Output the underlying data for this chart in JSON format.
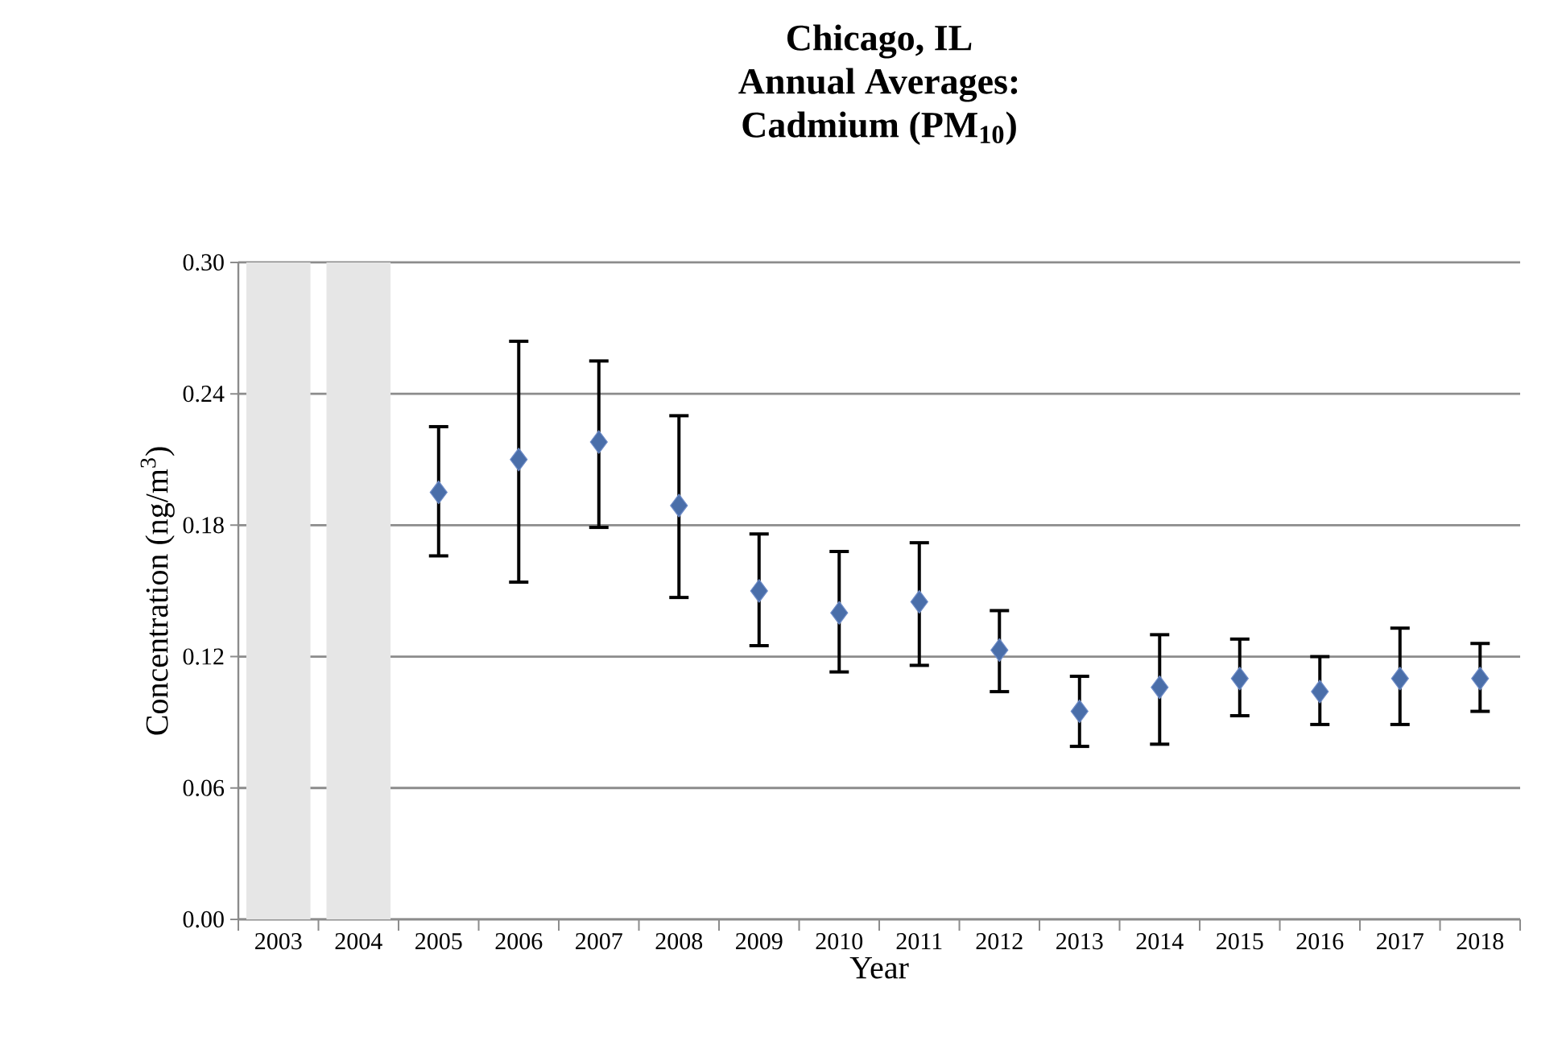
{
  "chart_data": {
    "type": "scatter",
    "title": "Chicago, IL\nAnnual Averages:\nCadmium (PM$_{10}$)",
    "xlabel": "Year",
    "ylabel": "Concentration (ng/m$^{3}$)",
    "categories": [
      "2003",
      "2004",
      "2005",
      "2006",
      "2007",
      "2008",
      "2009",
      "2010",
      "2011",
      "2012",
      "2013",
      "2014",
      "2015",
      "2016",
      "2017",
      "2018"
    ],
    "series": [
      {
        "color": "#4a6ea9",
        "values": [
          null,
          null,
          0.195,
          0.21,
          0.218,
          0.189,
          0.15,
          0.14,
          0.145,
          0.123,
          0.095,
          0.106,
          0.11,
          0.104,
          0.11,
          0.11
        ],
        "errors": [
          null,
          null,
          [
            0.166,
            0.225
          ],
          [
            0.154,
            0.264
          ],
          [
            0.179,
            0.255
          ],
          [
            0.147,
            0.23
          ],
          [
            0.125,
            0.176
          ],
          [
            0.113,
            0.168
          ],
          [
            0.116,
            0.172
          ],
          [
            0.104,
            0.141
          ],
          [
            0.079,
            0.111
          ],
          [
            0.08,
            0.13
          ],
          [
            0.093,
            0.128
          ],
          [
            0.089,
            0.12
          ],
          [
            0.089,
            0.133
          ],
          [
            0.095,
            0.126
          ]
        ]
      }
    ],
    "marker": "diamond",
    "grid": "y",
    "ylim": [
      0,
      0.3
    ],
    "yticks": [
      {
        "value": 0,
        "label": "0.00"
      },
      {
        "value": 0.06,
        "label": "0.06"
      },
      {
        "value": 0.12,
        "label": "0.12"
      },
      {
        "value": 0.18,
        "label": "0.18"
      },
      {
        "value": 0.24,
        "label": "0.24"
      },
      {
        "value": 0.3,
        "label": "0.30"
      }
    ],
    "bands": [
      {
        "axis": "x",
        "from": "2003",
        "to": "2003",
        "color": "#e6e6e6"
      },
      {
        "axis": "x",
        "from": "2004",
        "to": "2004",
        "color": "#e6e6e6"
      }
    ]
  }
}
